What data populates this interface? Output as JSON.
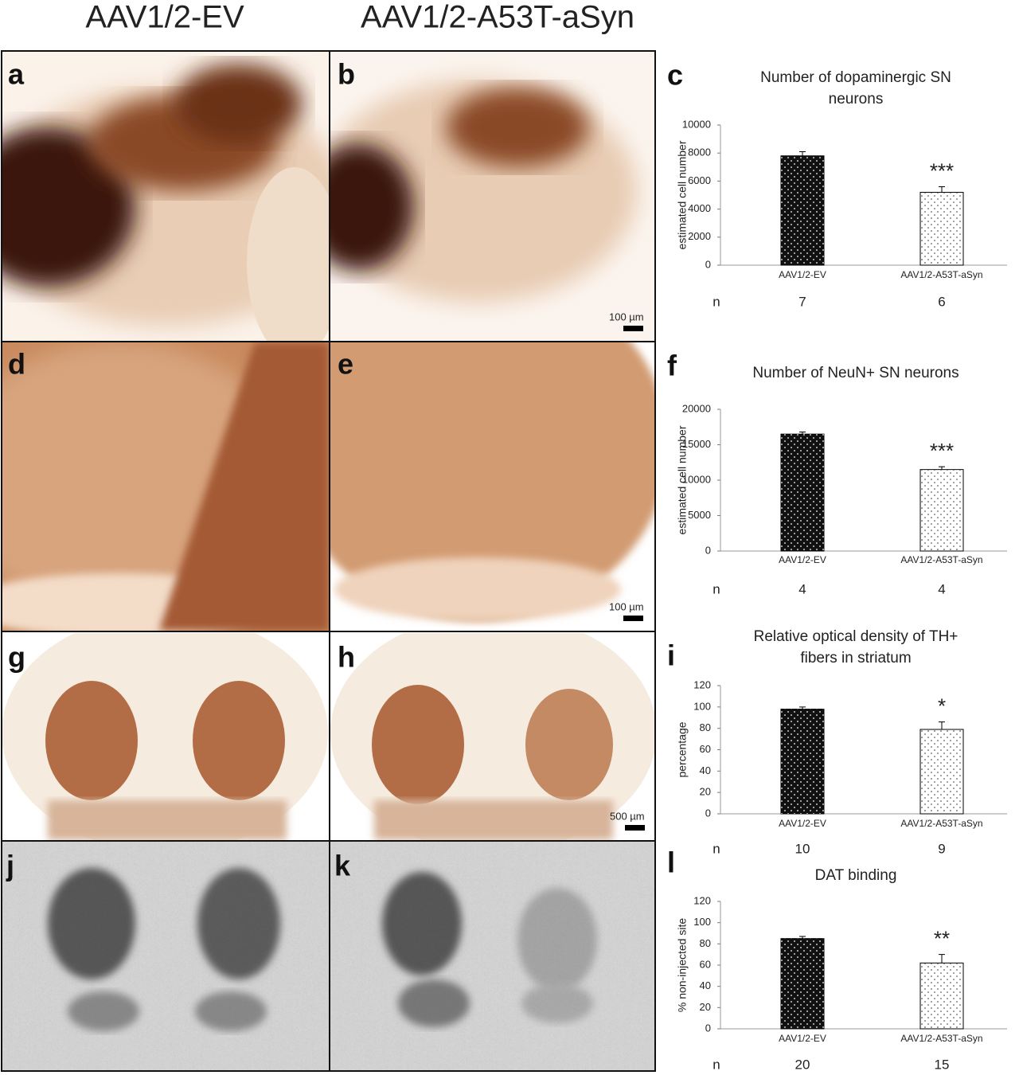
{
  "columns": [
    "AAV1/2-EV",
    "AAV1/2-A53T-aSyn"
  ],
  "panels": [
    "a",
    "b",
    "d",
    "e",
    "g",
    "h",
    "j",
    "k"
  ],
  "scale_bars": [
    "100 µm",
    "100 µm",
    "500 µm"
  ],
  "chart_data": [
    {
      "type": "bar",
      "panel": "c",
      "title": [
        "Number of dopaminergic SN",
        "neurons"
      ],
      "ylabel": "estimated cell number",
      "categories": [
        "AAV1/2-EV",
        "AAV1/2-A53T-aSyn"
      ],
      "values": [
        7800,
        5200
      ],
      "errors": [
        300,
        400
      ],
      "colors": [
        "#111111",
        "#ffffff"
      ],
      "annotation": "***",
      "n_label": "n",
      "n": [
        7,
        6
      ],
      "ylim": [
        0,
        10000
      ],
      "yticks": [
        0,
        2000,
        4000,
        6000,
        8000,
        10000
      ]
    },
    {
      "type": "bar",
      "panel": "f",
      "title": [
        "Number of NeuN+ SN neurons"
      ],
      "ylabel": "estimated cell number",
      "categories": [
        "AAV1/2-EV",
        "AAV1/2-A53T-aSyn"
      ],
      "values": [
        16500,
        11500
      ],
      "errors": [
        300,
        400
      ],
      "colors": [
        "#111111",
        "#ffffff"
      ],
      "annotation": "***",
      "n_label": "n",
      "n": [
        4,
        4
      ],
      "ylim": [
        0,
        20000
      ],
      "yticks": [
        0,
        5000,
        10000,
        15000,
        20000
      ]
    },
    {
      "type": "bar",
      "panel": "i",
      "title": [
        "Relative optical density of TH+",
        "fibers in striatum"
      ],
      "ylabel": "percentage",
      "categories": [
        "AAV1/2-EV",
        "AAV1/2-A53T-aSyn"
      ],
      "values": [
        98,
        79
      ],
      "errors": [
        2,
        7
      ],
      "colors": [
        "#111111",
        "#ffffff"
      ],
      "annotation": "*",
      "n_label": "n",
      "n": [
        10,
        9
      ],
      "ylim": [
        0,
        120
      ],
      "yticks": [
        0,
        20,
        40,
        60,
        80,
        100,
        120
      ]
    },
    {
      "type": "bar",
      "panel": "l",
      "title": [
        "DAT binding"
      ],
      "ylabel": "% non-injected site",
      "categories": [
        "AAV1/2-EV",
        "AAV1/2-A53T-aSyn"
      ],
      "values": [
        85,
        62
      ],
      "errors": [
        2,
        8
      ],
      "colors": [
        "#111111",
        "#ffffff"
      ],
      "annotation": "**",
      "n_label": "n",
      "n": [
        20,
        15
      ],
      "ylim": [
        0,
        120
      ],
      "yticks": [
        0,
        20,
        40,
        60,
        80,
        100,
        120
      ]
    }
  ]
}
